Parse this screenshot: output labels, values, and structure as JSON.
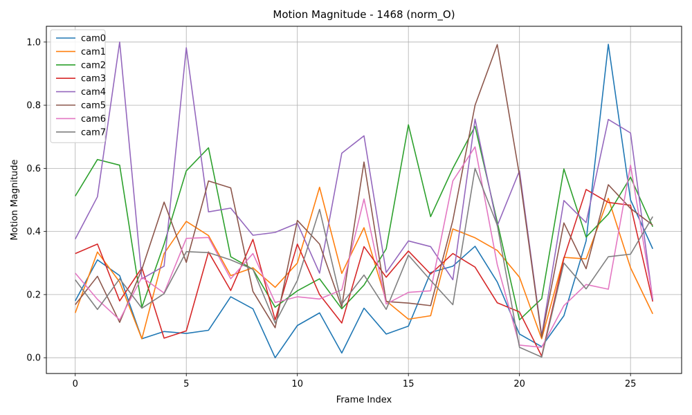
{
  "chart_data": {
    "type": "line",
    "title": "Motion Magnitude - 1468 (norm_O)",
    "xlabel": "Frame Index",
    "ylabel": "Motion Magnitude",
    "xlim": [
      -1.3,
      27.3
    ],
    "ylim": [
      -0.05,
      1.05
    ],
    "xticks": [
      0,
      5,
      10,
      15,
      20,
      25
    ],
    "yticks": [
      0.0,
      0.2,
      0.4,
      0.6,
      0.8,
      1.0
    ],
    "ytick_labels": [
      "0.0",
      "0.2",
      "0.4",
      "0.6",
      "0.8",
      "1.0"
    ],
    "grid": true,
    "legend_position": "top-left",
    "x": [
      0,
      1,
      2,
      3,
      4,
      5,
      6,
      7,
      8,
      9,
      10,
      11,
      12,
      13,
      14,
      15,
      16,
      17,
      18,
      19,
      20,
      21,
      22,
      23,
      24,
      25,
      26
    ],
    "series": [
      {
        "name": "cam0",
        "color": "#1f77b4",
        "values": [
          0.18,
          0.31,
          0.26,
          0.06,
          0.083,
          0.077,
          0.087,
          0.193,
          0.155,
          0.0,
          0.102,
          0.142,
          0.015,
          0.157,
          0.075,
          0.1,
          0.27,
          0.29,
          0.353,
          0.24,
          0.075,
          0.035,
          0.133,
          0.37,
          0.993,
          0.5,
          0.345
        ]
      },
      {
        "name": "cam1",
        "color": "#ff7f0e",
        "values": [
          0.142,
          0.335,
          0.24,
          0.06,
          0.33,
          0.432,
          0.387,
          0.26,
          0.285,
          0.223,
          0.3,
          0.54,
          0.267,
          0.412,
          0.18,
          0.122,
          0.133,
          0.408,
          0.38,
          0.34,
          0.255,
          0.06,
          0.318,
          0.313,
          0.505,
          0.285,
          0.139
        ]
      },
      {
        "name": "cam2",
        "color": "#2ca02c",
        "values": [
          0.512,
          0.628,
          0.61,
          0.16,
          0.36,
          0.592,
          0.665,
          0.32,
          0.28,
          0.16,
          0.212,
          0.25,
          0.155,
          0.23,
          0.345,
          0.738,
          0.447,
          0.6,
          0.733,
          0.43,
          0.12,
          0.187,
          0.598,
          0.382,
          0.455,
          0.572,
          0.415
        ]
      },
      {
        "name": "cam3",
        "color": "#d62728",
        "values": [
          0.33,
          0.36,
          0.18,
          0.285,
          0.062,
          0.085,
          0.335,
          0.213,
          0.375,
          0.12,
          0.36,
          0.2,
          0.11,
          0.352,
          0.255,
          0.338,
          0.265,
          0.33,
          0.287,
          0.174,
          0.145,
          0.005,
          0.315,
          0.533,
          0.492,
          0.483,
          0.178
        ]
      },
      {
        "name": "cam4",
        "color": "#9467bd",
        "values": [
          0.376,
          0.51,
          1.0,
          0.25,
          0.29,
          0.982,
          0.462,
          0.474,
          0.388,
          0.397,
          0.426,
          0.268,
          0.648,
          0.703,
          0.27,
          0.37,
          0.352,
          0.247,
          0.756,
          0.418,
          0.592,
          0.07,
          0.498,
          0.428,
          0.755,
          0.712,
          0.183
        ]
      },
      {
        "name": "cam5",
        "color": "#8c564b",
        "values": [
          0.168,
          0.258,
          0.112,
          0.28,
          0.493,
          0.302,
          0.56,
          0.538,
          0.21,
          0.095,
          0.435,
          0.36,
          0.16,
          0.62,
          0.178,
          0.173,
          0.165,
          0.435,
          0.8,
          0.992,
          0.578,
          0.065,
          0.427,
          0.282,
          0.548,
          0.473,
          0.42
        ]
      },
      {
        "name": "cam6",
        "color": "#e377c2",
        "values": [
          0.268,
          0.185,
          0.12,
          0.255,
          0.205,
          0.378,
          0.381,
          0.25,
          0.33,
          0.175,
          0.193,
          0.186,
          0.215,
          0.503,
          0.17,
          0.207,
          0.212,
          0.56,
          0.668,
          0.295,
          0.04,
          0.033,
          0.165,
          0.232,
          0.217,
          0.61,
          0.188
        ]
      },
      {
        "name": "cam7",
        "color": "#7f7f7f",
        "values": [
          0.247,
          0.153,
          0.25,
          0.157,
          0.203,
          0.336,
          0.333,
          0.31,
          0.28,
          0.11,
          0.245,
          0.47,
          0.17,
          0.262,
          0.153,
          0.325,
          0.245,
          0.168,
          0.6,
          0.42,
          0.033,
          0.002,
          0.3,
          0.218,
          0.32,
          0.328,
          0.447
        ]
      }
    ]
  }
}
